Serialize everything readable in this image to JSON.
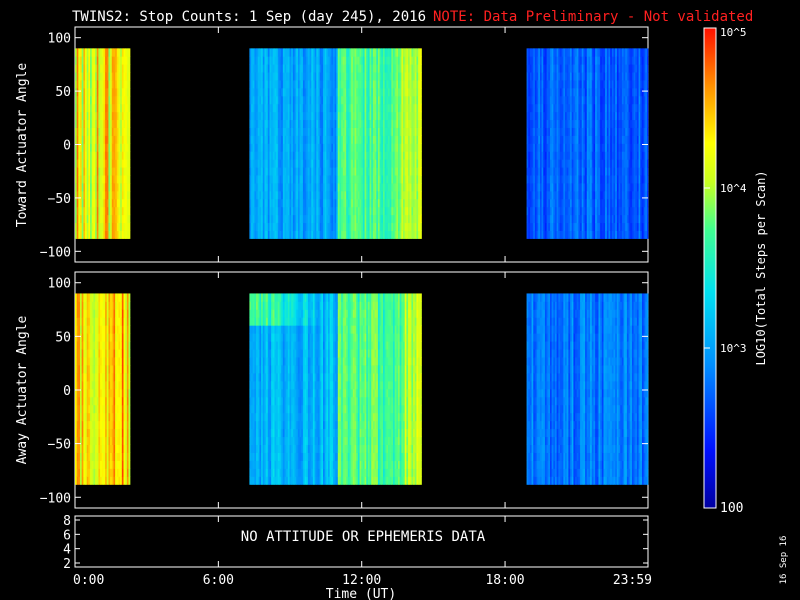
{
  "header": {
    "title": "TWINS2: Stop Counts:  1 Sep (day 245), 2016",
    "note": "NOTE: Data Preliminary - Not validated",
    "note_color": "#ff2020"
  },
  "side_stamp": "16 Sep 16",
  "colorbar": {
    "label": "LOG10(Total Steps per Scan)",
    "tick_labels": [
      "100",
      "10^3",
      "10^4",
      "10^5"
    ],
    "tick_values": [
      100,
      1000,
      10000,
      100000
    ],
    "range": [
      100,
      100000
    ],
    "scale": "log"
  },
  "panels": [
    {
      "id": "toward",
      "ylabel": "Toward Actuator Angle",
      "ylim": [
        -110,
        110
      ],
      "yticks": [
        -100,
        -50,
        0,
        50,
        100
      ]
    },
    {
      "id": "away",
      "ylabel": "Away Actuator Angle",
      "ylim": [
        -110,
        110
      ],
      "yticks": [
        -100,
        -50,
        0,
        50,
        100
      ]
    }
  ],
  "ephemeris_panel": {
    "message": "NO ATTITUDE OR EPHEMERIS DATA",
    "yticks": [
      "2",
      "4",
      "6",
      "8"
    ]
  },
  "xaxis": {
    "label": "Time (UT)",
    "tick_labels": [
      "0:00",
      "6:00",
      "12:00",
      "18:00",
      "23:59"
    ],
    "tick_hours": [
      0,
      6,
      12,
      18,
      23.983
    ]
  },
  "chart_data": [
    {
      "type": "heatmap",
      "title": "TWINS2: Stop Counts:  1 Sep (day 245), 2016",
      "ylabel": "Toward Actuator Angle",
      "xlabel": "Time (UT)",
      "xlim_hours": [
        0,
        23.983
      ],
      "ylim": [
        -110,
        110
      ],
      "angle_range": [
        -88,
        90
      ],
      "colorscale": "log10 counts, 100 to 100000",
      "data_intervals": [
        {
          "start_hour": 0.0,
          "end_hour": 2.3,
          "typical_log10": 4.3,
          "level": "high"
        },
        {
          "start_hour": 7.3,
          "end_hour": 11.0,
          "typical_log10": 3.0,
          "level": "low"
        },
        {
          "start_hour": 11.0,
          "end_hour": 14.5,
          "typical_log10": 3.7,
          "level": "medium-high"
        },
        {
          "start_hour": 18.9,
          "end_hour": 23.983,
          "typical_log10": 2.7,
          "level": "low"
        }
      ]
    },
    {
      "type": "heatmap",
      "ylabel": "Away Actuator Angle",
      "xlabel": "Time (UT)",
      "xlim_hours": [
        0,
        23.983
      ],
      "ylim": [
        -110,
        110
      ],
      "angle_range": [
        -88,
        90
      ],
      "colorscale": "log10 counts, 100 to 100000",
      "data_intervals": [
        {
          "start_hour": 0.0,
          "end_hour": 2.3,
          "typical_log10": 4.4,
          "level": "high"
        },
        {
          "start_hour": 7.3,
          "end_hour": 11.0,
          "typical_log10": 3.1,
          "level": "low"
        },
        {
          "start_hour": 11.0,
          "end_hour": 14.5,
          "typical_log10": 3.7,
          "level": "medium-high"
        },
        {
          "start_hour": 18.9,
          "end_hour": 23.983,
          "typical_log10": 2.8,
          "level": "low"
        }
      ]
    }
  ]
}
